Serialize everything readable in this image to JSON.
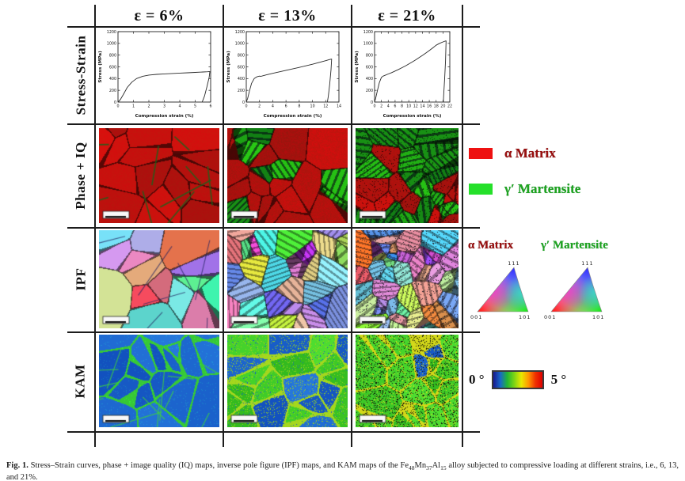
{
  "header": {
    "columns": [
      "ε = 6%",
      "ε = 13%",
      "ε = 21%"
    ]
  },
  "row_labels": [
    "Stress-Strain",
    "Phase + IQ",
    "IPF",
    "KAM"
  ],
  "chart_data": [
    {
      "type": "line",
      "title": "",
      "xlabel": "Compression strain (%)",
      "ylabel": "Stress (MPa)",
      "xlim": [
        0,
        6
      ],
      "ylim": [
        0,
        1200
      ],
      "xticks": [
        0,
        1,
        2,
        3,
        4,
        5,
        6
      ],
      "yticks": [
        0,
        200,
        400,
        600,
        800,
        1000,
        1200
      ],
      "grid": false,
      "legend": "none",
      "series": [
        {
          "name": "loading-unloading loop ε=6%",
          "x": [
            0,
            0.15,
            0.35,
            0.6,
            0.9,
            1.2,
            1.6,
            2.0,
            2.5,
            3.0,
            3.5,
            4.0,
            4.5,
            5.0,
            5.5,
            5.8,
            5.95,
            5.9,
            5.75,
            5.6,
            5.45
          ],
          "y": [
            0,
            40,
            130,
            250,
            340,
            400,
            440,
            460,
            472,
            480,
            487,
            493,
            499,
            505,
            512,
            517,
            520,
            420,
            250,
            100,
            0
          ]
        }
      ]
    },
    {
      "type": "line",
      "title": "",
      "xlabel": "Compression strain (%)",
      "ylabel": "Stress (MPa)",
      "xlim": [
        0,
        14
      ],
      "ylim": [
        0,
        1200
      ],
      "xticks": [
        0,
        2,
        4,
        6,
        8,
        10,
        12,
        14
      ],
      "yticks": [
        0,
        200,
        400,
        600,
        800,
        1000,
        1200
      ],
      "grid": false,
      "legend": "none",
      "series": [
        {
          "name": "loading-unloading loop ε=13%",
          "x": [
            0,
            0.2,
            0.5,
            0.8,
            1.2,
            1.6,
            2.0,
            2.2,
            2.5,
            3.0,
            4.0,
            5.0,
            6.0,
            7.0,
            8.0,
            9.0,
            10.0,
            11.0,
            12.0,
            12.6,
            12.9,
            12.8,
            12.6,
            12.4,
            12.25
          ],
          "y": [
            0,
            60,
            200,
            320,
            400,
            430,
            442,
            438,
            448,
            462,
            490,
            515,
            540,
            565,
            590,
            618,
            645,
            675,
            705,
            725,
            732,
            550,
            300,
            100,
            0
          ]
        }
      ]
    },
    {
      "type": "line",
      "title": "",
      "xlabel": "Compression strain (%)",
      "ylabel": "Stress (MPa)",
      "xlim": [
        0,
        22
      ],
      "ylim": [
        0,
        1200
      ],
      "xticks": [
        0,
        2,
        4,
        6,
        8,
        10,
        12,
        14,
        16,
        18,
        20,
        22
      ],
      "yticks": [
        0,
        200,
        400,
        600,
        800,
        1000,
        1200
      ],
      "grid": false,
      "legend": "none",
      "series": [
        {
          "name": "loading-unloading loop ε=21%",
          "x": [
            0,
            0.3,
            0.8,
            1.4,
            2.0,
            2.5,
            3.0,
            4.0,
            5.0,
            6.0,
            7.0,
            8.0,
            9.0,
            10.0,
            11.0,
            12.0,
            13.0,
            14.0,
            15.0,
            16.0,
            17.0,
            18.0,
            19.0,
            20.0,
            20.6,
            20.9,
            20.75,
            20.5,
            20.25,
            20.1
          ],
          "y": [
            0,
            60,
            190,
            330,
            420,
            442,
            455,
            478,
            502,
            528,
            556,
            585,
            615,
            648,
            682,
            718,
            756,
            795,
            836,
            878,
            922,
            968,
            1000,
            1025,
            1038,
            1042,
            700,
            400,
            150,
            0
          ]
        }
      ]
    }
  ],
  "maps": [
    {
      "type": "phase-iq",
      "strain": "6%"
    },
    {
      "type": "phase-iq",
      "strain": "13%"
    },
    {
      "type": "phase-iq",
      "strain": "21%"
    },
    {
      "type": "ipf",
      "strain": "6%"
    },
    {
      "type": "ipf",
      "strain": "13%"
    },
    {
      "type": "ipf",
      "strain": "21%"
    },
    {
      "type": "kam",
      "strain": "6%"
    },
    {
      "type": "kam",
      "strain": "13%"
    },
    {
      "type": "kam",
      "strain": "21%"
    }
  ],
  "phase_legend": {
    "alpha_label": "α  Matrix",
    "gamma_label": "γ′ Martensite",
    "alpha_color": "#ee1111",
    "gamma_color": "#25e02a",
    "alpha_text_color": "#9a0f0f",
    "gamma_text_color": "#1fa41f"
  },
  "ipf_legend": {
    "alpha_label": "α  Matrix",
    "gamma_label": "γ′ Martensite",
    "corner_top": "111",
    "corner_left": "001",
    "corner_right": "101"
  },
  "kam_legend": {
    "min_label": "0 °",
    "max_label": "5 °",
    "gradient": [
      "#181890",
      "#1868c8",
      "#22b832",
      "#7fd414",
      "#e8e800",
      "#ff9800",
      "#f03000",
      "#e00000"
    ]
  },
  "caption": {
    "label": "Fig. 1.",
    "segments": [
      {
        "text": " Stress–Strain curves, phase + image quality (IQ) maps, inverse pole figure (IPF) maps, and KAM maps of the Fe"
      },
      {
        "text": "48",
        "sub": true
      },
      {
        "text": "Mn",
        "sub": false
      },
      {
        "text": "37",
        "sub": true
      },
      {
        "text": "Al",
        "sub": false
      },
      {
        "text": "15",
        "sub": true
      },
      {
        "text": " alloy subjected to compressive loading at different strains, i.e., 6, 13, and 21%.",
        "sub": false
      }
    ]
  }
}
